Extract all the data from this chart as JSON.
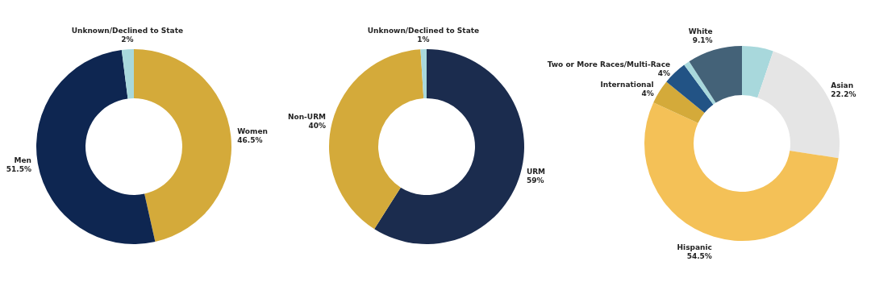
{
  "chart_data": [
    {
      "type": "donut",
      "categories": [
        "Women",
        "Men",
        "Unknown/Declined to State"
      ],
      "values": [
        46.5,
        51.5,
        2
      ],
      "value_labels": [
        "46.5%",
        "51.5%",
        "2%"
      ],
      "colors": [
        "#d4aa3a",
        "#0e2651",
        "#a8d8dc"
      ]
    },
    {
      "type": "donut",
      "categories": [
        "URM",
        "Non-URM",
        "Unknown/Declined to State"
      ],
      "values": [
        59,
        40,
        1
      ],
      "value_labels": [
        "59%",
        "40%",
        "1%"
      ],
      "colors": [
        "#1b2c4e",
        "#d4aa3a",
        "#a8d8dc"
      ]
    },
    {
      "type": "donut",
      "categories": [
        null,
        "Asian",
        "Hispanic",
        "International",
        "Two or More Races/Multi-Race",
        null,
        "White"
      ],
      "values": [
        5.2,
        22.2,
        54.5,
        4,
        4,
        1.0,
        9.1
      ],
      "value_labels": [
        null,
        "22.2%",
        "54.5%",
        "4%",
        "4%",
        null,
        "9.1%"
      ],
      "colors": [
        "#a8d8dc",
        "#e5e5e5",
        "#f4c157",
        "#d4aa3a",
        "#225385",
        "#a8d8dc",
        "#446278"
      ]
    }
  ]
}
